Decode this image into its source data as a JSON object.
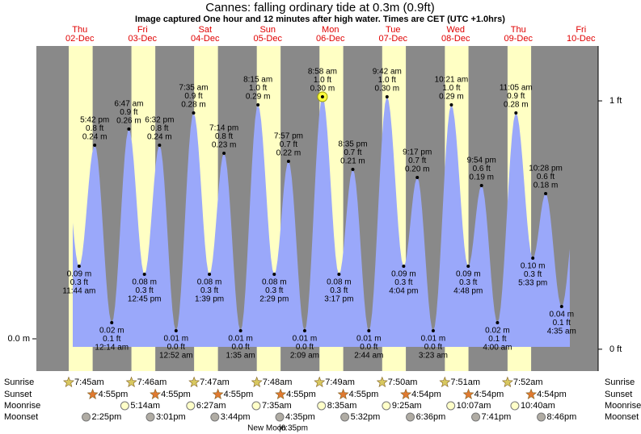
{
  "chart_data": {
    "type": "tide",
    "title": "Cannes: falling  ordinary tide at 0.3m (0.9ft)",
    "subtitle": "Image captured One hour and 12 minutes after high water. Times are CET (UTC +1.0hrs)",
    "ylim": [
      -0.04,
      0.363
    ],
    "yticks": [
      {
        "value": 0,
        "label": "0.0 m"
      }
    ],
    "y2lim": [
      -0.088,
      1.221
    ],
    "y2ticks": [
      {
        "value": 0,
        "label": "0 ft"
      },
      {
        "value": 1,
        "label": "1 ft"
      }
    ],
    "row_labels": {
      "sunrise": "Sunrise",
      "sunset": "Sunset",
      "moonrise": "Moonrise",
      "moonset": "Moonset"
    },
    "moon_phase": {
      "name": "New Moon",
      "time": "|6:35pm"
    },
    "colors": {
      "night": "#898989",
      "day": "#ffffc4",
      "tide": "#9aa8fa"
    },
    "days": [
      {
        "weekday": "Thu",
        "date": "02-Dec",
        "sunrise": "7:45am",
        "sunset": "4:55pm",
        "moonrise": null,
        "moonset": "2:25pm",
        "tides": [
          {
            "time": "11:44 am",
            "ft": 0.3,
            "ft_label": "0.3 ft",
            "m": 0.09,
            "m_label": "0.09 m"
          },
          {
            "time": "5:42 pm",
            "ft": 0.8,
            "ft_label": "0.8 ft",
            "m": 0.24,
            "m_label": "0.24 m"
          }
        ]
      },
      {
        "weekday": "Fri",
        "date": "03-Dec",
        "sunrise": "7:46am",
        "sunset": "4:55pm",
        "moonrise": "5:14am",
        "moonset": "3:01pm",
        "tides": [
          {
            "time": "12:14 am",
            "ft": 0.1,
            "ft_label": "0.1 ft",
            "m": 0.02,
            "m_label": "0.02 m"
          },
          {
            "time": "6:47 am",
            "ft": 0.9,
            "ft_label": "0.9 ft",
            "m": 0.26,
            "m_label": "0.26 m"
          },
          {
            "time": "12:45 pm",
            "ft": 0.3,
            "ft_label": "0.3 ft",
            "m": 0.08,
            "m_label": "0.08 m"
          },
          {
            "time": "6:32 pm",
            "ft": 0.8,
            "ft_label": "0.8 ft",
            "m": 0.24,
            "m_label": "0.24 m"
          }
        ]
      },
      {
        "weekday": "Sat",
        "date": "04-Dec",
        "sunrise": "7:47am",
        "sunset": "4:55pm",
        "moonrise": "6:27am",
        "moonset": "3:44pm",
        "tides": [
          {
            "time": "12:52 am",
            "ft": 0.0,
            "ft_label": "0.0 ft",
            "m": 0.01,
            "m_label": "0.01 m"
          },
          {
            "time": "7:35 am",
            "ft": 0.9,
            "ft_label": "0.9 ft",
            "m": 0.28,
            "m_label": "0.28 m"
          },
          {
            "time": "1:39 pm",
            "ft": 0.3,
            "ft_label": "0.3 ft",
            "m": 0.08,
            "m_label": "0.08 m"
          },
          {
            "time": "7:14 pm",
            "ft": 0.8,
            "ft_label": "0.8 ft",
            "m": 0.23,
            "m_label": "0.23 m"
          }
        ]
      },
      {
        "weekday": "Sun",
        "date": "05-Dec",
        "sunrise": "7:48am",
        "sunset": "4:55pm",
        "moonrise": "7:35am",
        "moonset": "4:35pm",
        "tides": [
          {
            "time": "1:35 am",
            "ft": 0.0,
            "ft_label": "0.0 ft",
            "m": 0.01,
            "m_label": "0.01 m"
          },
          {
            "time": "8:15 am",
            "ft": 1.0,
            "ft_label": "1.0 ft",
            "m": 0.29,
            "m_label": "0.29 m"
          },
          {
            "time": "2:29 pm",
            "ft": 0.3,
            "ft_label": "0.3 ft",
            "m": 0.08,
            "m_label": "0.08 m"
          },
          {
            "time": "7:57 pm",
            "ft": 0.7,
            "ft_label": "0.7 ft",
            "m": 0.22,
            "m_label": "0.22 m"
          }
        ]
      },
      {
        "weekday": "Mon",
        "date": "06-Dec",
        "sunrise": "7:49am",
        "sunset": "4:55pm",
        "moonrise": "8:35am",
        "moonset": "5:32pm",
        "tides": [
          {
            "time": "2:09 am",
            "ft": 0.0,
            "ft_label": "0.0 ft",
            "m": 0.01,
            "m_label": "0.01 m"
          },
          {
            "time": "8:58 am",
            "ft": 1.0,
            "ft_label": "1.0 ft",
            "m": 0.3,
            "m_label": "0.30 m"
          },
          {
            "time": "3:17 pm",
            "ft": 0.3,
            "ft_label": "0.3 ft",
            "m": 0.08,
            "m_label": "0.08 m"
          },
          {
            "time": "8:35 pm",
            "ft": 0.7,
            "ft_label": "0.7 ft",
            "m": 0.21,
            "m_label": "0.21 m"
          }
        ]
      },
      {
        "weekday": "Tue",
        "date": "07-Dec",
        "sunrise": "7:50am",
        "sunset": "4:54pm",
        "moonrise": "9:25am",
        "moonset": "6:36pm",
        "tides": [
          {
            "time": "2:44 am",
            "ft": 0.0,
            "ft_label": "0.0 ft",
            "m": 0.01,
            "m_label": "0.01 m"
          },
          {
            "time": "9:42 am",
            "ft": 1.0,
            "ft_label": "1.0 ft",
            "m": 0.3,
            "m_label": "0.30 m"
          },
          {
            "time": "4:04 pm",
            "ft": 0.3,
            "ft_label": "0.3 ft",
            "m": 0.09,
            "m_label": "0.09 m"
          },
          {
            "time": "9:17 pm",
            "ft": 0.7,
            "ft_label": "0.7 ft",
            "m": 0.2,
            "m_label": "0.20 m"
          }
        ]
      },
      {
        "weekday": "Wed",
        "date": "08-Dec",
        "sunrise": "7:51am",
        "sunset": "4:54pm",
        "moonrise": "10:07am",
        "moonset": "7:41pm",
        "tides": [
          {
            "time": "3:23 am",
            "ft": 0.0,
            "ft_label": "0.0 ft",
            "m": 0.01,
            "m_label": "0.01 m"
          },
          {
            "time": "10:21 am",
            "ft": 1.0,
            "ft_label": "1.0 ft",
            "m": 0.29,
            "m_label": "0.29 m"
          },
          {
            "time": "4:48 pm",
            "ft": 0.3,
            "ft_label": "0.3 ft",
            "m": 0.09,
            "m_label": "0.09 m"
          },
          {
            "time": "9:54 pm",
            "ft": 0.6,
            "ft_label": "0.6 ft",
            "m": 0.19,
            "m_label": "0.19 m"
          }
        ]
      },
      {
        "weekday": "Thu",
        "date": "09-Dec",
        "sunrise": "7:52am",
        "sunset": "4:54pm",
        "moonrise": "10:40am",
        "moonset": "8:46pm",
        "tides": [
          {
            "time": "4:00 am",
            "ft": 0.1,
            "ft_label": "0.1 ft",
            "m": 0.02,
            "m_label": "0.02 m"
          },
          {
            "time": "11:05 am",
            "ft": 0.9,
            "ft_label": "0.9 ft",
            "m": 0.28,
            "m_label": "0.28 m"
          },
          {
            "time": "5:33 pm",
            "ft": 0.3,
            "ft_label": "0.3 ft",
            "m": 0.1,
            "m_label": "0.10 m"
          },
          {
            "time": "10:28 pm",
            "ft": 0.6,
            "ft_label": "0.6 ft",
            "m": 0.18,
            "m_label": "0.18 m"
          }
        ]
      },
      {
        "weekday": "Fri",
        "date": "10-Dec",
        "sunrise": null,
        "sunset": null,
        "moonrise": null,
        "moonset": null,
        "tides": [
          {
            "time": "4:35 am",
            "ft": 0.1,
            "ft_label": "0.1 ft",
            "m": 0.04,
            "m_label": "0.04 m"
          }
        ]
      }
    ]
  }
}
